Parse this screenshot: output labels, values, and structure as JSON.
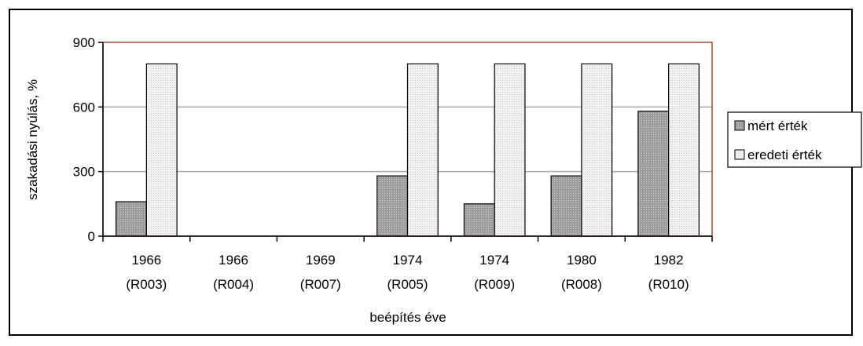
{
  "chart_data": {
    "type": "bar",
    "title": "",
    "xlabel": "beépítés éve",
    "ylabel": "szakadási nyúlás, %",
    "ylim": [
      0,
      900
    ],
    "yticks": [
      "0",
      "300",
      "600",
      "900"
    ],
    "grid": true,
    "legend_position": "right",
    "categories": [
      {
        "year": "1966",
        "code": "(R003)"
      },
      {
        "year": "1966",
        "code": "(R004)"
      },
      {
        "year": "1969",
        "code": "(R007)"
      },
      {
        "year": "1974",
        "code": "(R005)"
      },
      {
        "year": "1974",
        "code": "(R009)"
      },
      {
        "year": "1980",
        "code": "(R008)"
      },
      {
        "year": "1982",
        "code": "(R010)"
      }
    ],
    "series": [
      {
        "name": "mért érték",
        "color": "#a6a6a6",
        "values": [
          160,
          0,
          0,
          280,
          150,
          280,
          580
        ]
      },
      {
        "name": "eredeti érték",
        "color": "#e6e6e6",
        "values": [
          800,
          0,
          0,
          800,
          800,
          800,
          800
        ]
      }
    ],
    "colors": {
      "plot_border": "#a0522d",
      "gridline": "#a6a6a6",
      "axis": "#000000"
    }
  }
}
